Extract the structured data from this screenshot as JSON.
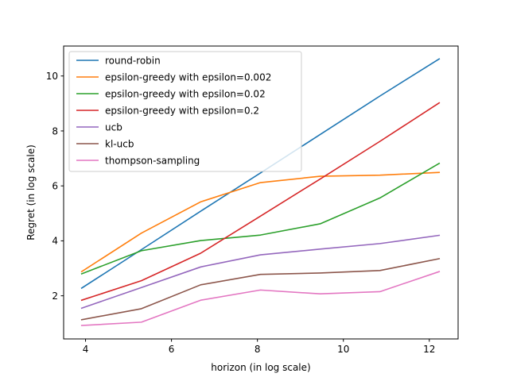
{
  "chart_data": {
    "type": "line",
    "title": "",
    "xlabel": "horizon (in log scale)",
    "ylabel": "Regret (in log scale)",
    "xlim": [
      3.49,
      12.67
    ],
    "ylim": [
      0.43,
      11.09
    ],
    "xticks": [
      4,
      6,
      8,
      10,
      12
    ],
    "yticks": [
      2,
      4,
      6,
      8,
      10
    ],
    "grid": false,
    "legend_position": "upper-left",
    "x": [
      3.91,
      5.3,
      6.68,
      8.07,
      9.46,
      10.85,
      12.23
    ],
    "series": [
      {
        "name": "round-robin",
        "color": "#1f77b4",
        "values": [
          2.28,
          3.68,
          5.08,
          6.47,
          7.87,
          9.27,
          10.62
        ]
      },
      {
        "name": "epsilon-greedy with epsilon=0.002",
        "color": "#ff7f0e",
        "values": [
          2.88,
          4.28,
          5.42,
          6.12,
          6.35,
          6.39,
          6.49
        ]
      },
      {
        "name": "epsilon-greedy with epsilon=0.02",
        "color": "#2ca02c",
        "values": [
          2.8,
          3.64,
          4.01,
          4.21,
          4.62,
          5.56,
          6.82
        ]
      },
      {
        "name": "epsilon-greedy with epsilon=0.2",
        "color": "#d62728",
        "values": [
          1.84,
          2.55,
          3.55,
          4.9,
          6.25,
          7.62,
          9.02
        ]
      },
      {
        "name": "ucb",
        "color": "#9467bd",
        "values": [
          1.55,
          2.3,
          3.05,
          3.49,
          3.7,
          3.9,
          4.2
        ]
      },
      {
        "name": "kl-ucb",
        "color": "#8c564b",
        "values": [
          1.13,
          1.53,
          2.4,
          2.78,
          2.83,
          2.92,
          3.35
        ]
      },
      {
        "name": "thompson-sampling",
        "color": "#e377c2",
        "values": [
          0.92,
          1.04,
          1.84,
          2.21,
          2.07,
          2.15,
          2.88
        ]
      }
    ]
  }
}
